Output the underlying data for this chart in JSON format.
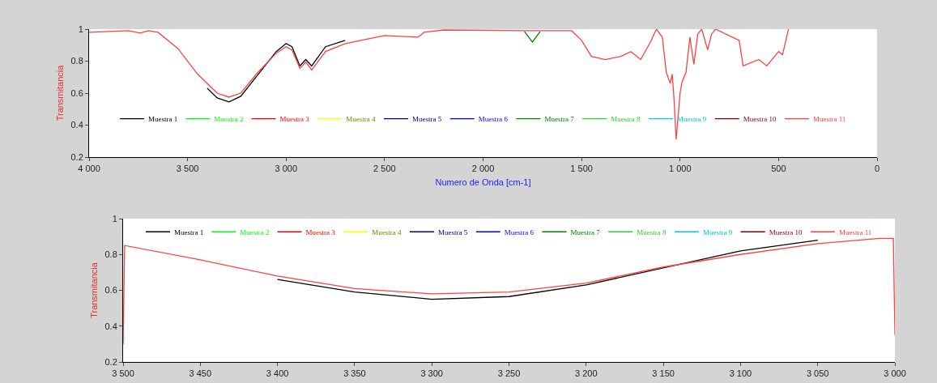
{
  "chart_data": [
    {
      "type": "line",
      "xlabel": "Numero de Onda [cm-1]",
      "ylabel": "Transmitancia",
      "x": [
        4000,
        3800,
        3740,
        3700,
        3650,
        3550,
        3450,
        3350,
        3290,
        3230,
        3150,
        3050,
        3000,
        2970,
        2930,
        2900,
        2870,
        2800,
        2700,
        2500,
        2330,
        2300,
        2200,
        1800,
        1700,
        1550,
        1500,
        1450,
        1380,
        1300,
        1250,
        1200,
        1150,
        1120,
        1090,
        1070,
        1050,
        1040,
        1030,
        1020,
        1000,
        990,
        970,
        950,
        930,
        910,
        890,
        860,
        840,
        820,
        700,
        680,
        600,
        560,
        500,
        480,
        450
      ],
      "xlim": [
        4000,
        0
      ],
      "xticks": [
        {
          "value": 4000,
          "label": "4 000"
        },
        {
          "value": 3500,
          "label": "3 500"
        },
        {
          "value": 3000,
          "label": "3 000"
        },
        {
          "value": 2500,
          "label": "2 500"
        },
        {
          "value": 2000,
          "label": "2 000"
        },
        {
          "value": 1500,
          "label": "1 500"
        },
        {
          "value": 1000,
          "label": "1 000"
        },
        500,
        0
      ],
      "ylim": [
        0.2,
        1
      ],
      "yticks": [
        0.2,
        0.4,
        0.6,
        0.8,
        1
      ],
      "grid": false,
      "legend": "bottom",
      "line_style": "solid",
      "marker": "none",
      "series": [
        {
          "name": "Muestra 1",
          "color": "#000000",
          "x": [
            3400,
            3350,
            3290,
            3230,
            3050,
            3000,
            2970,
            2930,
            2900,
            2870,
            2800,
            2700
          ],
          "values": [
            0.63,
            0.57,
            0.545,
            0.58,
            0.86,
            0.91,
            0.89,
            0.77,
            0.81,
            0.77,
            0.89,
            0.93
          ]
        },
        {
          "name": "Muestra 2",
          "color": "#00ff00",
          "values": [
            null,
            null,
            null,
            null,
            null,
            null,
            null,
            null,
            null,
            null,
            null,
            null,
            null,
            null,
            null,
            null,
            null,
            null,
            null,
            null,
            null,
            null,
            null,
            null,
            null,
            null,
            null,
            null,
            null,
            null,
            null,
            null,
            null,
            null,
            null,
            null,
            null,
            null,
            null,
            null,
            null,
            null,
            null,
            null,
            null,
            null,
            null,
            null,
            null,
            null,
            null,
            null,
            null,
            null,
            null,
            null,
            null
          ]
        },
        {
          "name": "Muestra 3",
          "color": "#ff0000",
          "values": [
            null,
            null,
            null,
            null,
            null,
            null,
            null,
            null,
            null,
            null,
            null,
            null,
            null,
            null,
            null,
            null,
            null,
            null,
            null,
            null,
            null,
            null,
            null,
            null,
            null,
            null,
            null,
            null,
            null,
            null,
            null,
            null,
            null,
            null,
            null,
            null,
            null,
            null,
            null,
            null,
            null,
            null,
            null,
            null,
            null,
            null,
            null,
            null,
            null,
            null,
            null,
            null,
            null,
            null,
            null,
            null,
            null
          ]
        },
        {
          "name": "Muestra 4",
          "color": "#ffff00",
          "values": [
            null,
            null,
            null,
            null,
            null,
            null,
            null,
            null,
            null,
            null,
            null,
            null,
            null,
            null,
            null,
            null,
            null,
            null,
            null,
            null,
            null,
            null,
            null,
            null,
            null,
            null,
            null,
            null,
            null,
            null,
            null,
            null,
            null,
            null,
            null,
            null,
            null,
            null,
            null,
            null,
            null,
            null,
            null,
            null,
            null,
            null,
            null,
            null,
            null,
            null,
            null,
            null,
            null,
            null,
            null,
            null,
            null
          ]
        },
        {
          "name": "Muestra 5",
          "color": "#000080",
          "values": [
            null,
            null,
            null,
            null,
            null,
            null,
            null,
            null,
            null,
            null,
            null,
            null,
            null,
            null,
            null,
            null,
            null,
            null,
            null,
            null,
            null,
            null,
            null,
            null,
            null,
            null,
            null,
            null,
            null,
            null,
            null,
            null,
            null,
            null,
            null,
            null,
            null,
            null,
            null,
            null,
            null,
            null,
            null,
            null,
            null,
            null,
            null,
            null,
            null,
            null,
            null,
            null,
            null,
            null,
            null,
            null,
            null
          ]
        },
        {
          "name": "Muestra 6",
          "color": "#0000ff",
          "values": [
            null,
            null,
            null,
            null,
            null,
            null,
            null,
            null,
            null,
            null,
            null,
            null,
            null,
            null,
            null,
            null,
            null,
            null,
            null,
            null,
            null,
            null,
            null,
            null,
            null,
            null,
            null,
            null,
            null,
            null,
            null,
            null,
            null,
            null,
            null,
            null,
            null,
            null,
            null,
            null,
            null,
            null,
            null,
            null,
            null,
            null,
            null,
            null,
            null,
            null,
            null,
            null,
            null,
            null,
            null,
            null,
            null
          ]
        },
        {
          "name": "Muestra 7",
          "color": "#008000",
          "x": [
            1790,
            1750,
            1710
          ],
          "values": [
            0.985,
            0.92,
            0.985
          ]
        },
        {
          "name": "Muestra 8",
          "color": "#33cc33",
          "values": [
            null,
            null,
            null,
            null,
            null,
            null,
            null,
            null,
            null,
            null,
            null,
            null,
            null,
            null,
            null,
            null,
            null,
            null,
            null,
            null,
            null,
            null,
            null,
            null,
            null,
            null,
            null,
            null,
            null,
            null,
            null,
            null,
            null,
            null,
            null,
            null,
            null,
            null,
            null,
            null,
            null,
            null,
            null,
            null,
            null,
            null,
            null,
            null,
            null,
            null,
            null,
            null,
            null,
            null,
            null,
            null,
            null
          ]
        },
        {
          "name": "Muestra 9",
          "color": "#00cccc",
          "values": [
            null,
            null,
            null,
            null,
            null,
            null,
            null,
            null,
            null,
            null,
            null,
            null,
            null,
            null,
            null,
            null,
            null,
            null,
            null,
            null,
            null,
            null,
            null,
            null,
            null,
            null,
            null,
            null,
            null,
            null,
            null,
            null,
            null,
            null,
            null,
            null,
            null,
            null,
            null,
            null,
            null,
            null,
            null,
            null,
            null,
            null,
            null,
            null,
            null,
            null,
            null,
            null,
            null,
            null,
            null,
            null,
            null
          ]
        },
        {
          "name": "Muestra 10",
          "color": "#800000",
          "values": [
            null,
            null,
            null,
            null,
            null,
            null,
            null,
            null,
            null,
            null,
            null,
            null,
            null,
            null,
            null,
            null,
            null,
            null,
            null,
            null,
            null,
            null,
            null,
            null,
            null,
            null,
            null,
            null,
            null,
            null,
            null,
            null,
            null,
            null,
            null,
            null,
            null,
            null,
            null,
            null,
            null,
            null,
            null,
            null,
            null,
            null,
            null,
            null,
            null,
            null,
            null,
            null,
            null,
            null,
            null,
            null,
            null
          ]
        },
        {
          "name": "Muestra 11",
          "color": "#ff4040",
          "values": [
            0.98,
            0.99,
            0.975,
            0.99,
            0.98,
            0.88,
            0.72,
            0.6,
            0.575,
            0.6,
            0.72,
            0.85,
            0.89,
            0.87,
            0.755,
            0.795,
            0.745,
            0.86,
            0.91,
            0.96,
            0.95,
            0.98,
            0.995,
            0.99,
            0.99,
            0.99,
            0.93,
            0.83,
            0.81,
            0.83,
            0.86,
            0.81,
            0.92,
            1,
            0.95,
            0.73,
            0.66,
            0.72,
            0.55,
            0.31,
            0.6,
            0.67,
            0.73,
            0.95,
            0.78,
            0.97,
            1,
            0.87,
            0.97,
            1,
            0.93,
            0.77,
            0.81,
            0.77,
            0.86,
            0.84,
            1
          ]
        }
      ]
    },
    {
      "type": "line",
      "ylabel": "Transmitancia",
      "x": [
        3500,
        3499,
        3450,
        3400,
        3350,
        3300,
        3250,
        3200,
        3150,
        3100,
        3050,
        3010,
        3001,
        3000
      ],
      "xlim": [
        3500,
        3000
      ],
      "xticks": [
        {
          "value": 3500,
          "label": "3 500"
        },
        {
          "value": 3450,
          "label": "3 450"
        },
        {
          "value": 3400,
          "label": "3 400"
        },
        {
          "value": 3350,
          "label": "3 350"
        },
        {
          "value": 3300,
          "label": "3 300"
        },
        {
          "value": 3250,
          "label": "3 250"
        },
        {
          "value": 3200,
          "label": "3 200"
        },
        {
          "value": 3150,
          "label": "3 150"
        },
        {
          "value": 3100,
          "label": "3 100"
        },
        {
          "value": 3050,
          "label": "3 050"
        },
        {
          "value": 3000,
          "label": "3 000"
        }
      ],
      "ylim": [
        0.2,
        1
      ],
      "yticks": [
        0.2,
        0.4,
        0.6,
        0.8,
        1
      ],
      "grid": false,
      "legend": "top",
      "line_style": "solid",
      "marker": "none",
      "series": [
        {
          "name": "Muestra 1",
          "color": "#000000",
          "x": [
            3400,
            3350,
            3300,
            3250,
            3200,
            3100,
            3050
          ],
          "values": [
            0.66,
            0.59,
            0.55,
            0.565,
            0.63,
            0.82,
            0.88
          ]
        },
        {
          "name": "Muestra 2",
          "color": "#00ff00",
          "values": [
            null,
            null,
            null,
            null,
            null,
            null,
            null,
            null,
            null,
            null,
            null,
            null,
            null,
            null
          ]
        },
        {
          "name": "Muestra 3",
          "color": "#ff0000",
          "values": [
            null,
            null,
            null,
            null,
            null,
            null,
            null,
            null,
            null,
            null,
            null,
            null,
            null,
            null
          ]
        },
        {
          "name": "Muestra 4",
          "color": "#ffff00",
          "values": [
            null,
            null,
            null,
            null,
            null,
            null,
            null,
            null,
            null,
            null,
            null,
            null,
            null,
            null
          ]
        },
        {
          "name": "Muestra 5",
          "color": "#000080",
          "values": [
            null,
            null,
            null,
            null,
            null,
            null,
            null,
            null,
            null,
            null,
            null,
            null,
            null,
            null
          ]
        },
        {
          "name": "Muestra 6",
          "color": "#0000ff",
          "values": [
            null,
            null,
            null,
            null,
            null,
            null,
            null,
            null,
            null,
            null,
            null,
            null,
            null,
            null
          ]
        },
        {
          "name": "Muestra 7",
          "color": "#008000",
          "values": [
            null,
            null,
            null,
            null,
            null,
            null,
            null,
            null,
            null,
            null,
            null,
            null,
            null,
            null
          ]
        },
        {
          "name": "Muestra 8",
          "color": "#33cc33",
          "values": [
            null,
            null,
            null,
            null,
            null,
            null,
            null,
            null,
            null,
            null,
            null,
            null,
            null,
            null
          ]
        },
        {
          "name": "Muestra 9",
          "color": "#00cccc",
          "values": [
            null,
            null,
            null,
            null,
            null,
            null,
            null,
            null,
            null,
            null,
            null,
            null,
            null,
            null
          ]
        },
        {
          "name": "Muestra 10",
          "color": "#800000",
          "values": [
            null,
            null,
            null,
            null,
            null,
            null,
            null,
            null,
            null,
            null,
            null,
            null,
            null,
            null
          ]
        },
        {
          "name": "Muestra 11",
          "color": "#ff4040",
          "values": [
            0.3,
            0.85,
            0.77,
            0.68,
            0.61,
            0.58,
            0.59,
            0.64,
            0.73,
            0.8,
            0.86,
            0.89,
            0.89,
            0.35
          ]
        }
      ]
    }
  ]
}
